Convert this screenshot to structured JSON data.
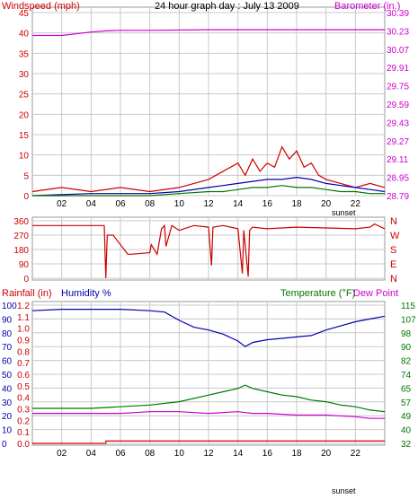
{
  "title": "24 hour graph day : July 13 2009",
  "colors": {
    "red": "#cc0000",
    "magenta": "#cc00cc",
    "blue": "#0000aa",
    "green": "#007700",
    "grid": "#c8c8c8",
    "text": "#000000"
  },
  "chart_data": [
    {
      "type": "line",
      "name": "wind-barometer",
      "left_axis": {
        "label": "Windspeed (mph)",
        "ylim": [
          0,
          45
        ],
        "ticks": [
          "0",
          "5",
          "10",
          "15",
          "20",
          "25",
          "30",
          "35",
          "40",
          "45"
        ]
      },
      "right_axis": {
        "label": "Barometer (in.)",
        "ylim": [
          28.79,
          30.39
        ],
        "ticks": [
          "28.79",
          "28.95",
          "29.11",
          "29.27",
          "29.43",
          "29.59",
          "29.75",
          "29.91",
          "30.07",
          "30.23",
          "30.39"
        ]
      },
      "x_ticks": [
        "02",
        "04",
        "06",
        "08",
        "10",
        "12",
        "14",
        "16",
        "18",
        "20",
        "22"
      ],
      "x_annotation": "sunset",
      "barometer_x": [
        0,
        2,
        4,
        5,
        6,
        8,
        12,
        16,
        20,
        24
      ],
      "barometer_y": [
        30.19,
        30.19,
        30.22,
        30.23,
        30.235,
        30.235,
        30.24,
        30.24,
        30.24,
        30.24
      ],
      "gust_x": [
        0,
        2,
        4,
        6,
        8,
        10,
        11,
        12,
        13,
        14,
        14.5,
        15,
        15.5,
        16,
        16.5,
        17,
        17.5,
        18,
        18.5,
        19,
        19.5,
        20,
        21,
        22,
        23,
        24
      ],
      "gust_y": [
        1,
        2,
        1,
        2,
        1,
        2,
        3,
        4,
        6,
        8,
        5,
        9,
        6,
        8,
        7,
        12,
        9,
        11,
        7,
        8,
        5,
        4,
        3,
        2,
        3,
        2
      ],
      "avg_x": [
        0,
        4,
        8,
        10,
        12,
        13,
        14,
        15,
        16,
        17,
        18,
        19,
        20,
        21,
        22,
        23,
        24
      ],
      "avg_y": [
        0,
        0.5,
        0.5,
        1,
        2,
        2.5,
        3,
        3.5,
        4,
        4,
        4.5,
        4,
        3,
        2.5,
        2,
        1.5,
        1
      ],
      "speed_x": [
        0,
        4,
        8,
        10,
        12,
        13,
        14,
        15,
        16,
        17,
        18,
        19,
        20,
        21,
        22,
        23,
        24
      ],
      "speed_y": [
        0,
        0,
        0,
        0.5,
        1,
        1,
        1.5,
        2,
        2,
        2.5,
        2,
        2,
        1.5,
        1,
        1,
        0.5,
        0.5
      ]
    },
    {
      "type": "line",
      "name": "wind-direction",
      "left_axis": {
        "ylim": [
          0,
          360
        ],
        "ticks": [
          "0",
          "90",
          "180",
          "270",
          "360"
        ]
      },
      "right_axis": {
        "ticks": [
          "N",
          "W",
          "S",
          "E",
          "N"
        ]
      },
      "x": [
        0,
        0.5,
        4.9,
        5.0,
        5.1,
        5.5,
        6.5,
        6.7,
        8.0,
        8.1,
        8.5,
        8.8,
        9.0,
        9.1,
        9.5,
        10,
        11,
        12,
        12.2,
        12.3,
        13,
        14,
        14.3,
        14.4,
        14.7,
        14.8,
        15,
        16,
        18,
        20,
        22,
        23,
        23.3,
        24
      ],
      "y": [
        330,
        330,
        330,
        0,
        270,
        270,
        150,
        150,
        160,
        210,
        150,
        310,
        330,
        200,
        330,
        300,
        330,
        320,
        80,
        320,
        330,
        310,
        30,
        300,
        10,
        300,
        320,
        310,
        320,
        315,
        310,
        320,
        340,
        310
      ]
    },
    {
      "type": "line",
      "name": "rain-humidity-temperature",
      "left_label_rain": "Rainfall (in)",
      "left_label_humidity": "Humidity %",
      "right_label_temp": "Temperature (°F)",
      "right_label_dew": "Dew Point",
      "rain_ticks": [
        "0.0",
        "0.1",
        "0.2",
        "0.3",
        "0.4",
        "0.5",
        "0.6",
        "0.7",
        "0.8",
        "0.9",
        "1.0",
        "1.1",
        "1.2"
      ],
      "humidity_ticks": [
        "0",
        "10",
        "20",
        "30",
        "40",
        "50",
        "60",
        "70",
        "80",
        "90",
        "100"
      ],
      "temp_ticks": [
        "32",
        "40",
        "49",
        "57",
        "65",
        "74",
        "82",
        "90",
        "98",
        "107",
        "115"
      ],
      "temp_ylim": [
        32,
        115
      ],
      "rain_ylim": [
        0,
        1.2
      ],
      "x_ticks": [
        "02",
        "04",
        "06",
        "08",
        "10",
        "12",
        "14",
        "16",
        "18",
        "20",
        "22"
      ],
      "x_annotation": "sunset",
      "humidity_x": [
        0,
        2,
        4,
        6,
        8,
        9,
        10,
        11,
        12,
        13,
        14,
        14.5,
        15,
        16,
        17,
        18,
        19,
        20,
        21,
        22,
        23,
        24
      ],
      "humidity_y": [
        96,
        97,
        97,
        97,
        96,
        95,
        89,
        84,
        82,
        79,
        74,
        70,
        73,
        75,
        76,
        77,
        78,
        82,
        85,
        88,
        90,
        92
      ],
      "temp_x": [
        0,
        2,
        4,
        6,
        8,
        10,
        12,
        13,
        14,
        14.5,
        15,
        16,
        17,
        18,
        19,
        20,
        21,
        22,
        23,
        24
      ],
      "temp_y": [
        53,
        53,
        53,
        54,
        55,
        57,
        61,
        63,
        65,
        67,
        65,
        63,
        61,
        60,
        58,
        57,
        55,
        54,
        52,
        51
      ],
      "dew_x": [
        0,
        2,
        4,
        6,
        8,
        10,
        12,
        14,
        15,
        16,
        18,
        20,
        22,
        23,
        24
      ],
      "dew_y": [
        50,
        50,
        50,
        50,
        51,
        51,
        50,
        51,
        50,
        50,
        49,
        49,
        48,
        47,
        47
      ],
      "rain_x": [
        0,
        5,
        5.01,
        24
      ],
      "rain_y": [
        0,
        0,
        0.02,
        0.02
      ]
    }
  ]
}
